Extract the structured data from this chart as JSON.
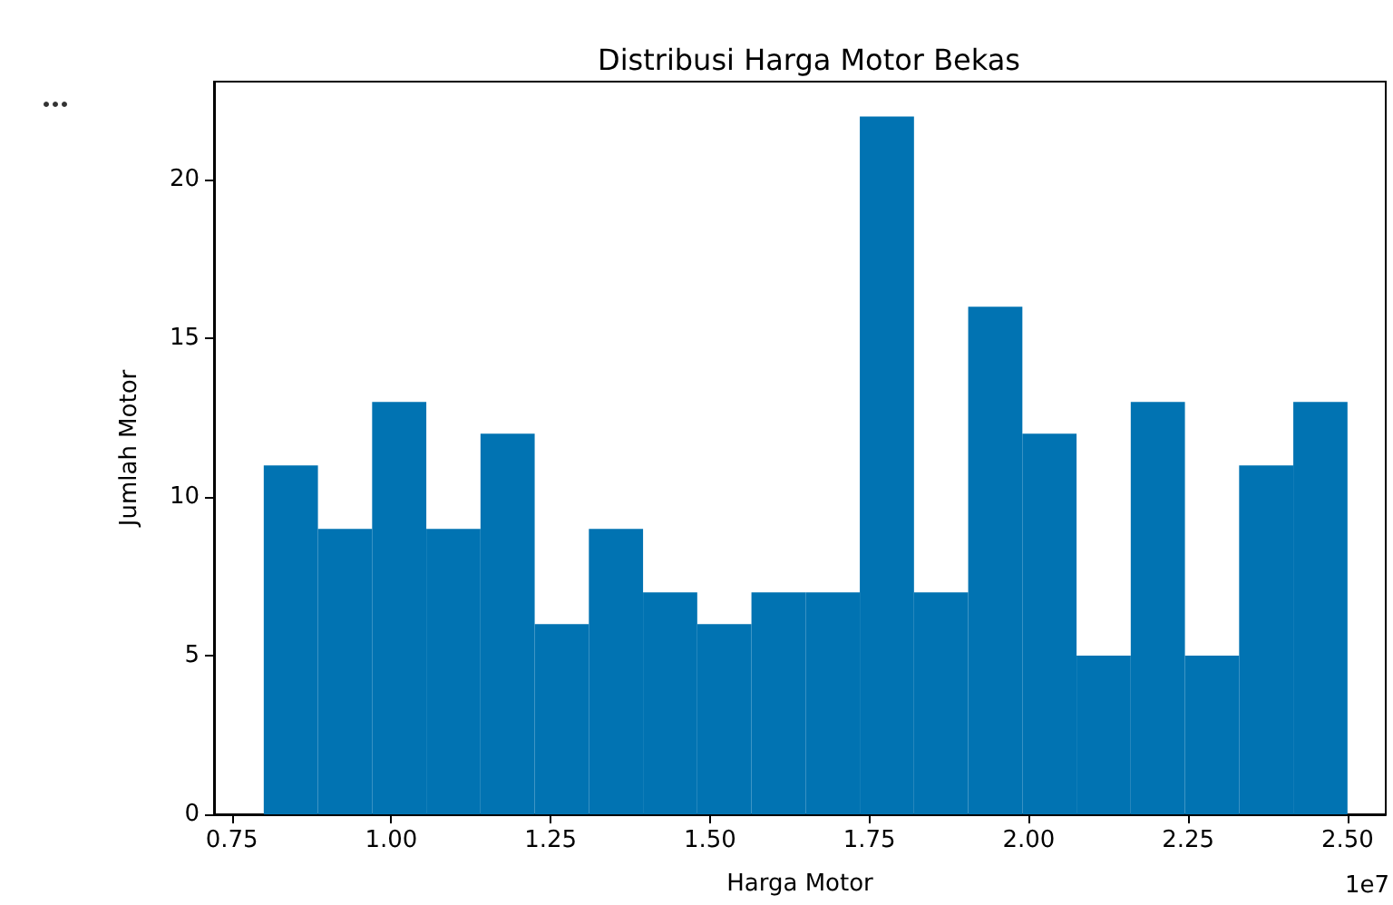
{
  "chart_data": {
    "type": "histogram",
    "title": "Distribusi Harga Motor Bekas",
    "xlabel": "Harga Motor",
    "ylabel": "Jumlah Motor",
    "bins": [
      0.8,
      0.885,
      0.97,
      1.055,
      1.14,
      1.225,
      1.31,
      1.395,
      1.48,
      1.565,
      1.65,
      1.735,
      1.82,
      1.905,
      1.99,
      2.075,
      2.16,
      2.245,
      2.33,
      2.415,
      2.5
    ],
    "values": [
      11,
      9,
      13,
      9,
      12,
      6,
      9,
      7,
      6,
      7,
      7,
      22,
      7,
      16,
      12,
      5,
      13,
      5,
      11,
      13
    ],
    "color": "#0173b2",
    "xlim": [
      0.722,
      2.56
    ],
    "xticks": [
      0.75,
      {
        "value": 1,
        "label": "1.00"
      },
      1.25,
      {
        "value": 1.5,
        "label": "1.50"
      },
      1.75,
      {
        "value": 2,
        "label": "2.00"
      },
      2.25,
      {
        "value": 2.5,
        "label": "2.50"
      }
    ],
    "ylim": [
      0,
      23.1
    ],
    "yticks": [
      0,
      5,
      10,
      15,
      20
    ],
    "annotations": [
      "1e7"
    ],
    "grid": false
  }
}
